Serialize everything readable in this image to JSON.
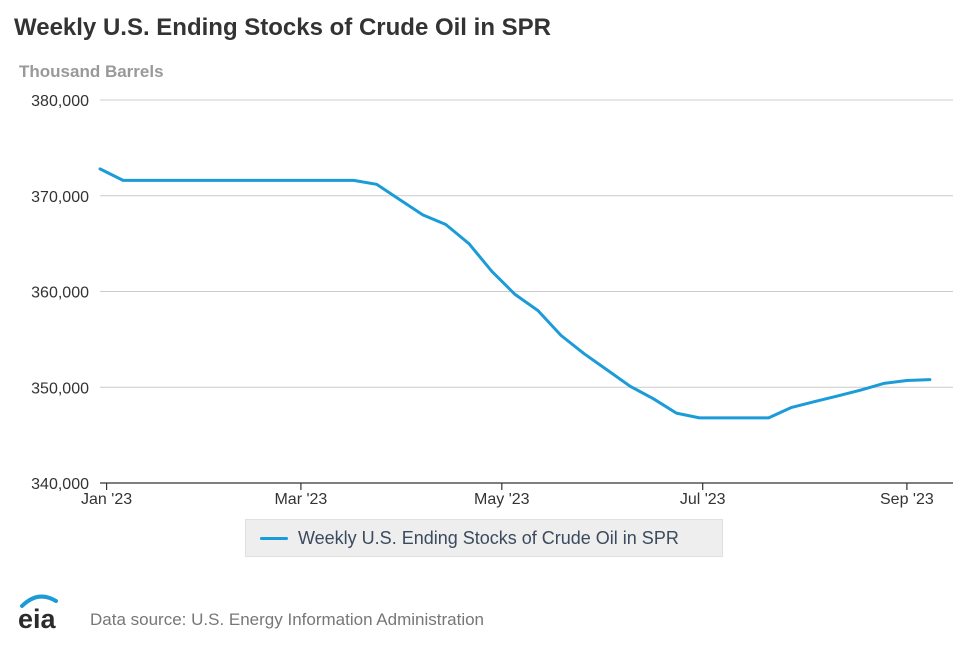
{
  "title": "Weekly U.S. Ending Stocks of Crude Oil in SPR",
  "units": "Thousand Barrels",
  "legend": {
    "label": "Weekly U.S. Ending Stocks of Crude Oil in SPR",
    "color": "#1b9bd7"
  },
  "source": "Data source: U.S. Energy Information Administration",
  "logo_text": "eia",
  "colors": {
    "series": "#1b9bd7",
    "grid": "#cccccc",
    "axis": "#333333"
  },
  "chart_data": {
    "type": "line",
    "title": "Weekly U.S. Ending Stocks of Crude Oil in SPR",
    "ylabel": "Thousand Barrels",
    "xlabel": "",
    "ylim": [
      340000,
      380000
    ],
    "yticks": [
      340000,
      350000,
      360000,
      370000,
      380000
    ],
    "ytick_labels": [
      "340,000",
      "350,000",
      "360,000",
      "370,000",
      "380,000"
    ],
    "xlim": [
      "2022-12-30",
      "2023-09-15"
    ],
    "xticks": [
      "2023-01-01",
      "2023-03-01",
      "2023-05-01",
      "2023-07-01",
      "2023-09-01"
    ],
    "xtick_labels": [
      "Jan '23",
      "Mar '23",
      "May '23",
      "Jul '23",
      "Sep '23"
    ],
    "grid": true,
    "legend_position": "bottom",
    "series": [
      {
        "name": "Weekly U.S. Ending Stocks of Crude Oil in SPR",
        "x": [
          "2022-12-30",
          "2023-01-06",
          "2023-01-13",
          "2023-01-20",
          "2023-01-27",
          "2023-02-03",
          "2023-02-10",
          "2023-02-17",
          "2023-02-24",
          "2023-03-03",
          "2023-03-10",
          "2023-03-17",
          "2023-03-24",
          "2023-03-31",
          "2023-04-07",
          "2023-04-14",
          "2023-04-21",
          "2023-04-28",
          "2023-05-05",
          "2023-05-12",
          "2023-05-19",
          "2023-05-26",
          "2023-06-02",
          "2023-06-09",
          "2023-06-16",
          "2023-06-23",
          "2023-06-30",
          "2023-07-07",
          "2023-07-14",
          "2023-07-21",
          "2023-07-28",
          "2023-08-04",
          "2023-08-11",
          "2023-08-18",
          "2023-08-25",
          "2023-09-01",
          "2023-09-08"
        ],
        "values": [
          372800,
          371600,
          371600,
          371600,
          371600,
          371600,
          371600,
          371600,
          371600,
          371600,
          371600,
          371600,
          371200,
          369600,
          368000,
          367000,
          365000,
          362100,
          359700,
          358000,
          355400,
          353500,
          351800,
          350100,
          348800,
          347300,
          346800,
          346800,
          346800,
          346800,
          347900,
          348500,
          349100,
          349700,
          350400,
          350700,
          350800
        ]
      }
    ]
  }
}
